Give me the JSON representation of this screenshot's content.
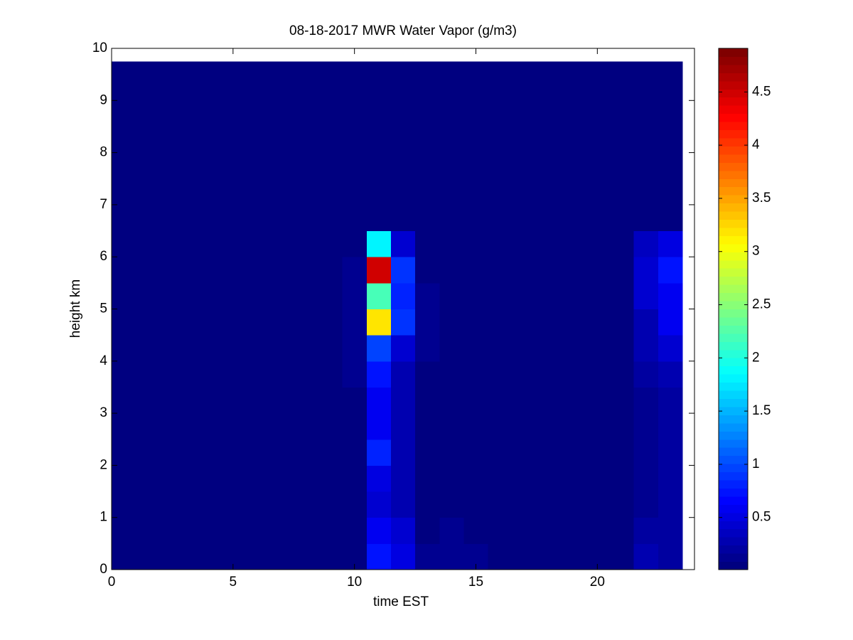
{
  "chart_data": {
    "type": "heatmap",
    "title": "08-18-2017 MWR Water Vapor (g/m3)",
    "x_label": "time EST",
    "y_label": "height km",
    "xlim": [
      0,
      24
    ],
    "xticks": [
      0,
      5,
      10,
      15,
      20
    ],
    "ylim": [
      0,
      10
    ],
    "yticks": [
      0,
      1,
      2,
      3,
      4,
      5,
      6,
      7,
      8,
      9,
      10
    ],
    "x_edges": [
      0,
      0.5,
      1.5,
      2.5,
      3.5,
      4.5,
      5.5,
      6.5,
      7.5,
      8.5,
      9.5,
      10.5,
      11.5,
      12.5,
      13.5,
      14.5,
      15.5,
      16.5,
      17.5,
      18.5,
      19.5,
      20.5,
      21.5,
      22.5,
      23.5
    ],
    "y_edges": [
      0,
      0.5,
      1,
      1.5,
      2,
      2.5,
      3,
      3.5,
      4,
      4.5,
      5,
      5.5,
      6,
      6.5,
      7,
      7.5,
      8,
      8.5,
      9,
      9.5,
      9.75
    ],
    "colormap": "jet",
    "clim": [
      0.01,
      4.91
    ],
    "colorbar_ticks": [
      0.5,
      1,
      1.5,
      2,
      2.5,
      3,
      3.5,
      4,
      4.5
    ],
    "z": [
      [
        0.05,
        0.05,
        0.05,
        0.05,
        0.05,
        0.05,
        0.05,
        0.05,
        0.05,
        0.05,
        0.05,
        0.7,
        0.5,
        0.15,
        0.15,
        0.12,
        0.05,
        0.05,
        0.05,
        0.05,
        0.05,
        0.05,
        0.25,
        0.2
      ],
      [
        0.05,
        0.05,
        0.05,
        0.05,
        0.05,
        0.05,
        0.05,
        0.05,
        0.05,
        0.05,
        0.05,
        0.6,
        0.4,
        0.05,
        0.1,
        0.05,
        0.05,
        0.05,
        0.05,
        0.05,
        0.05,
        0.05,
        0.2,
        0.2
      ],
      [
        0.05,
        0.05,
        0.05,
        0.05,
        0.05,
        0.05,
        0.05,
        0.05,
        0.05,
        0.05,
        0.05,
        0.4,
        0.3,
        0.05,
        0.05,
        0.05,
        0.05,
        0.05,
        0.05,
        0.05,
        0.05,
        0.05,
        0.15,
        0.2
      ],
      [
        0.05,
        0.05,
        0.05,
        0.05,
        0.05,
        0.05,
        0.05,
        0.05,
        0.05,
        0.05,
        0.05,
        0.5,
        0.3,
        0.05,
        0.05,
        0.05,
        0.05,
        0.05,
        0.05,
        0.05,
        0.05,
        0.05,
        0.15,
        0.2
      ],
      [
        0.05,
        0.05,
        0.05,
        0.05,
        0.05,
        0.05,
        0.05,
        0.05,
        0.05,
        0.05,
        0.05,
        0.8,
        0.25,
        0.05,
        0.05,
        0.05,
        0.05,
        0.05,
        0.05,
        0.05,
        0.05,
        0.05,
        0.15,
        0.2
      ],
      [
        0.05,
        0.05,
        0.05,
        0.05,
        0.05,
        0.05,
        0.05,
        0.05,
        0.05,
        0.05,
        0.05,
        0.6,
        0.25,
        0.05,
        0.05,
        0.05,
        0.05,
        0.05,
        0.05,
        0.05,
        0.05,
        0.05,
        0.15,
        0.2
      ],
      [
        0.05,
        0.05,
        0.05,
        0.05,
        0.05,
        0.05,
        0.05,
        0.05,
        0.05,
        0.05,
        0.05,
        0.6,
        0.3,
        0.05,
        0.05,
        0.05,
        0.05,
        0.05,
        0.05,
        0.05,
        0.05,
        0.05,
        0.15,
        0.2
      ],
      [
        0.05,
        0.05,
        0.05,
        0.05,
        0.05,
        0.05,
        0.05,
        0.05,
        0.05,
        0.05,
        0.1,
        0.7,
        0.3,
        0.05,
        0.05,
        0.05,
        0.05,
        0.05,
        0.05,
        0.05,
        0.05,
        0.05,
        0.2,
        0.3
      ],
      [
        0.05,
        0.05,
        0.05,
        0.05,
        0.05,
        0.05,
        0.05,
        0.05,
        0.05,
        0.05,
        0.1,
        1.0,
        0.4,
        0.1,
        0.05,
        0.05,
        0.05,
        0.05,
        0.05,
        0.05,
        0.05,
        0.05,
        0.25,
        0.45
      ],
      [
        0.05,
        0.05,
        0.05,
        0.05,
        0.05,
        0.05,
        0.05,
        0.05,
        0.05,
        0.05,
        0.1,
        3.2,
        0.9,
        0.15,
        0.05,
        0.05,
        0.05,
        0.05,
        0.05,
        0.05,
        0.05,
        0.05,
        0.3,
        0.55
      ],
      [
        0.05,
        0.05,
        0.05,
        0.05,
        0.05,
        0.05,
        0.05,
        0.05,
        0.05,
        0.05,
        0.1,
        2.2,
        0.8,
        0.15,
        0.05,
        0.05,
        0.05,
        0.05,
        0.05,
        0.05,
        0.05,
        0.05,
        0.4,
        0.6
      ],
      [
        0.05,
        0.05,
        0.05,
        0.05,
        0.05,
        0.05,
        0.05,
        0.05,
        0.05,
        0.05,
        0.1,
        4.5,
        0.9,
        0.05,
        0.05,
        0.05,
        0.05,
        0.05,
        0.05,
        0.05,
        0.05,
        0.05,
        0.45,
        0.75
      ],
      [
        0.05,
        0.05,
        0.05,
        0.05,
        0.05,
        0.05,
        0.05,
        0.05,
        0.05,
        0.05,
        0.05,
        1.8,
        0.4,
        0.05,
        0.05,
        0.05,
        0.05,
        0.05,
        0.05,
        0.05,
        0.05,
        0.05,
        0.35,
        0.5
      ],
      [
        0.05,
        0.05,
        0.05,
        0.05,
        0.05,
        0.05,
        0.05,
        0.05,
        0.05,
        0.05,
        0.05,
        0.05,
        0.05,
        0.05,
        0.05,
        0.05,
        0.05,
        0.05,
        0.05,
        0.05,
        0.05,
        0.05,
        0.05,
        0.05
      ],
      [
        0.05,
        0.05,
        0.05,
        0.05,
        0.05,
        0.05,
        0.05,
        0.05,
        0.05,
        0.05,
        0.05,
        0.05,
        0.05,
        0.05,
        0.05,
        0.05,
        0.05,
        0.05,
        0.05,
        0.05,
        0.05,
        0.05,
        0.05,
        0.05
      ],
      [
        0.05,
        0.05,
        0.05,
        0.05,
        0.05,
        0.05,
        0.05,
        0.05,
        0.05,
        0.05,
        0.05,
        0.05,
        0.05,
        0.05,
        0.05,
        0.05,
        0.05,
        0.05,
        0.05,
        0.05,
        0.05,
        0.05,
        0.05,
        0.05
      ],
      [
        0.05,
        0.05,
        0.05,
        0.05,
        0.05,
        0.05,
        0.05,
        0.05,
        0.05,
        0.05,
        0.05,
        0.05,
        0.05,
        0.05,
        0.05,
        0.05,
        0.05,
        0.05,
        0.05,
        0.05,
        0.05,
        0.05,
        0.05,
        0.05
      ],
      [
        0.05,
        0.05,
        0.05,
        0.05,
        0.05,
        0.05,
        0.05,
        0.05,
        0.05,
        0.05,
        0.05,
        0.05,
        0.05,
        0.05,
        0.05,
        0.05,
        0.05,
        0.05,
        0.05,
        0.05,
        0.05,
        0.05,
        0.05,
        0.05
      ],
      [
        0.05,
        0.05,
        0.05,
        0.05,
        0.05,
        0.05,
        0.05,
        0.05,
        0.05,
        0.05,
        0.05,
        0.05,
        0.05,
        0.05,
        0.05,
        0.05,
        0.05,
        0.05,
        0.05,
        0.05,
        0.05,
        0.05,
        0.05,
        0.05
      ],
      [
        0.05,
        0.05,
        0.05,
        0.05,
        0.05,
        0.05,
        0.05,
        0.05,
        0.05,
        0.05,
        0.05,
        0.05,
        0.05,
        0.05,
        0.05,
        0.05,
        0.05,
        0.05,
        0.05,
        0.05,
        0.05,
        0.05,
        0.05,
        0.05
      ]
    ]
  }
}
